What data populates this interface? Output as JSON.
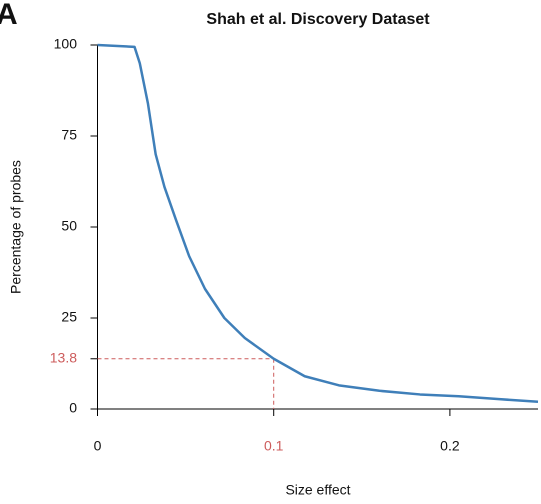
{
  "panel_label": "A",
  "chart_data": {
    "type": "line",
    "title": "Shah et al. Discovery Dataset",
    "x_label": "Size effect",
    "y_label": "Percentage of probes",
    "x": [
      0,
      0.021,
      0.024,
      0.0286,
      0.033,
      0.038,
      0.0445,
      0.052,
      0.061,
      0.072,
      0.0836,
      0.1,
      0.1176,
      0.137,
      0.16,
      0.183,
      0.205,
      0.228,
      0.25
    ],
    "values": [
      100,
      99.5,
      95,
      84,
      70,
      61,
      52,
      42,
      33,
      25,
      19.5,
      13.8,
      9,
      6.5,
      5,
      4,
      3.5,
      2.7,
      2
    ],
    "color": "#3f7fb9",
    "xlim": [
      0,
      0.25
    ],
    "ylim": [
      0,
      100
    ],
    "xticks": [
      0,
      0.2
    ],
    "yticks": [
      0,
      25,
      50,
      75,
      100
    ],
    "annotation": {
      "x": 0.1,
      "y": 13.8,
      "color": "#cd5c5c"
    }
  }
}
